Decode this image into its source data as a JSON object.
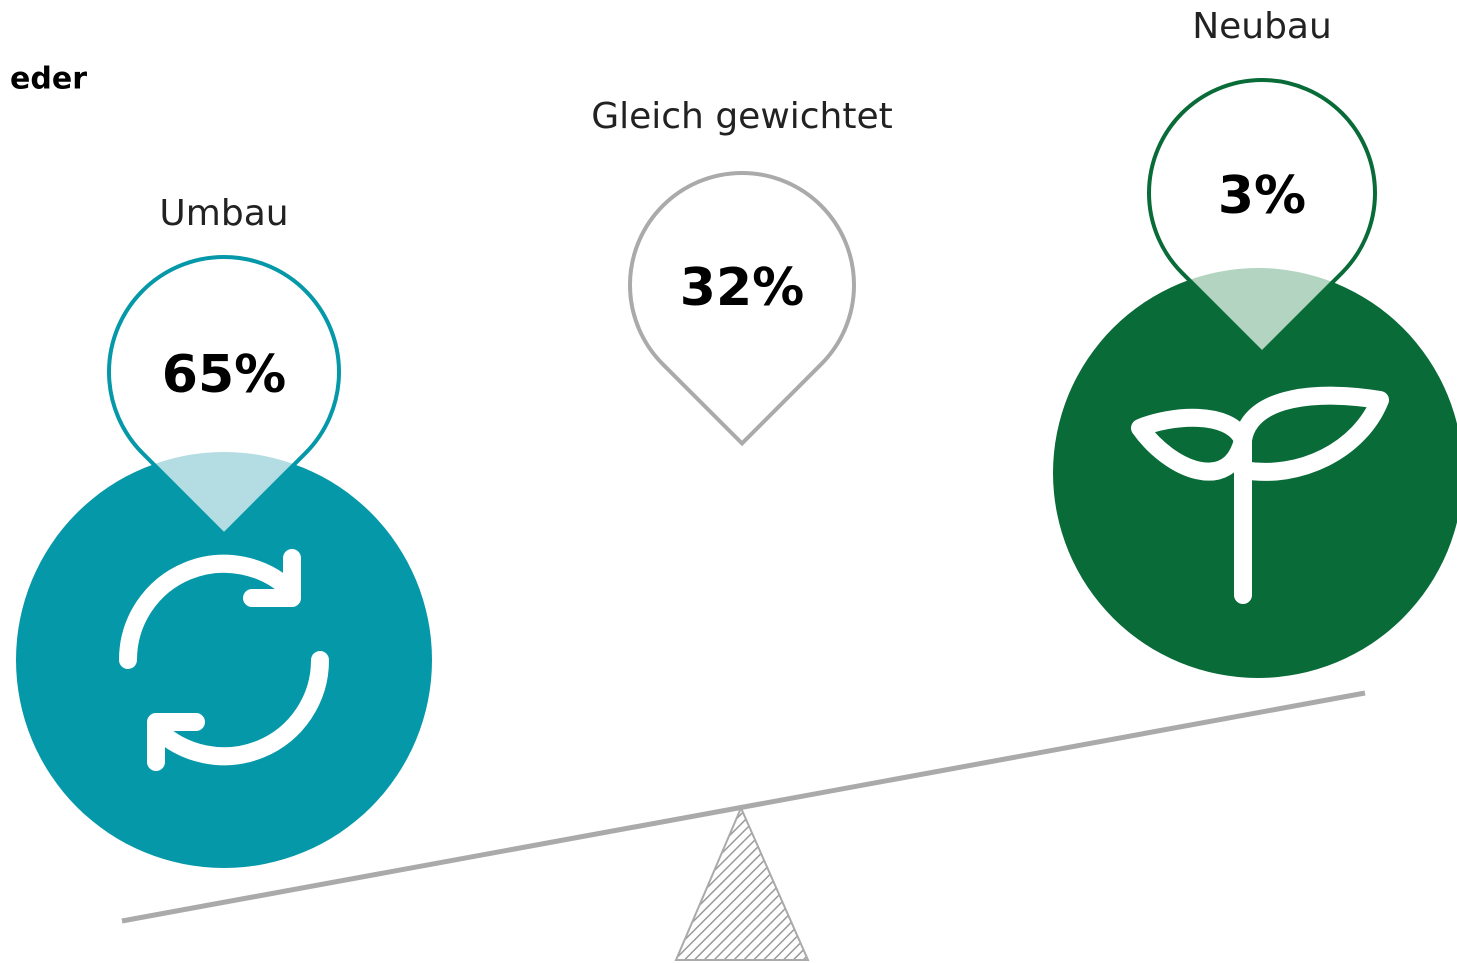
{
  "fragment": "eder",
  "items": [
    {
      "label": "Umbau",
      "value": "65%"
    },
    {
      "label": "Gleich gewichtet",
      "value": "32%"
    },
    {
      "label": "Neubau",
      "value": "3%"
    }
  ]
}
